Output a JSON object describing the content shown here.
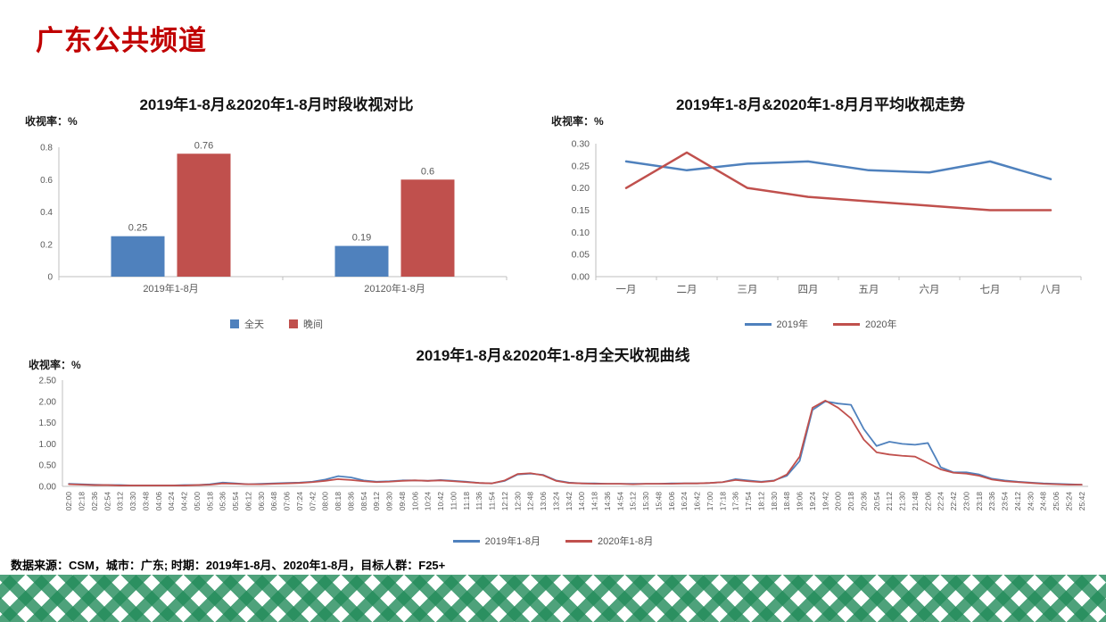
{
  "page": {
    "title": "广东公共频道",
    "footer": "数据来源：CSM，城市：广东; 时期：2019年1-8月、2020年1-8月，目标人群：F25+"
  },
  "colors": {
    "series_blue": "#4F81BD",
    "series_red": "#C0504D",
    "title_red": "#C00000",
    "band_green": "#228B5A"
  },
  "chart_data": [
    {
      "type": "bar",
      "title": "2019年1-8月&2020年1-8月时段收视对比",
      "ylabel": "收视率：%",
      "categories": [
        "2019年1-8月",
        "20120年1-8月"
      ],
      "series": [
        {
          "name": "全天",
          "color": "#4F81BD",
          "values": [
            0.25,
            0.19
          ],
          "labels": [
            "0.25",
            "0.19"
          ]
        },
        {
          "name": "晚间",
          "color": "#C0504D",
          "values": [
            0.76,
            0.6
          ],
          "labels": [
            "0.76",
            "0.6"
          ]
        }
      ],
      "ylim": [
        0,
        0.8
      ],
      "yticks": [
        "0",
        "0.2",
        "0.4",
        "0.6",
        "0.8"
      ],
      "grid": false,
      "legend_position": "bottom"
    },
    {
      "type": "line",
      "title": "2019年1-8月&2020年1-8月月平均收视走势",
      "ylabel": "收视率：%",
      "categories": [
        "一月",
        "二月",
        "三月",
        "四月",
        "五月",
        "六月",
        "七月",
        "八月"
      ],
      "series": [
        {
          "name": "2019年",
          "color": "#4F81BD",
          "values": [
            0.26,
            0.24,
            0.255,
            0.26,
            0.24,
            0.235,
            0.26,
            0.22
          ]
        },
        {
          "name": "2020年",
          "color": "#C0504D",
          "values": [
            0.2,
            0.28,
            0.2,
            0.18,
            0.17,
            0.16,
            0.15,
            0.15
          ]
        }
      ],
      "ylim": [
        0,
        0.3
      ],
      "yticks": [
        "0.00",
        "0.05",
        "0.10",
        "0.15",
        "0.20",
        "0.25",
        "0.30"
      ],
      "grid": false,
      "legend_position": "bottom"
    },
    {
      "type": "line",
      "title": "2019年1-8月&2020年1-8月全天收视曲线",
      "ylabel": "收视率：%",
      "categories": [
        "02:00",
        "02:18",
        "02:36",
        "02:54",
        "03:12",
        "03:30",
        "03:48",
        "04:06",
        "04:24",
        "04:42",
        "05:00",
        "05:18",
        "05:36",
        "05:54",
        "06:12",
        "06:30",
        "06:48",
        "07:06",
        "07:24",
        "07:42",
        "08:00",
        "08:18",
        "08:36",
        "08:54",
        "09:12",
        "09:30",
        "09:48",
        "10:06",
        "10:24",
        "10:42",
        "11:00",
        "11:18",
        "11:36",
        "11:54",
        "12:12",
        "12:30",
        "12:48",
        "13:06",
        "13:24",
        "13:42",
        "14:00",
        "14:18",
        "14:36",
        "14:54",
        "15:12",
        "15:30",
        "15:48",
        "16:06",
        "16:24",
        "16:42",
        "17:00",
        "17:18",
        "17:36",
        "17:54",
        "18:12",
        "18:30",
        "18:48",
        "19:06",
        "19:24",
        "19:42",
        "20:00",
        "20:18",
        "20:36",
        "20:54",
        "21:12",
        "21:30",
        "21:48",
        "22:06",
        "22:24",
        "22:42",
        "23:00",
        "23:18",
        "23:36",
        "23:54",
        "24:12",
        "24:30",
        "24:48",
        "25:06",
        "25:24",
        "25:42"
      ],
      "series": [
        {
          "name": "2019年1-8月",
          "color": "#4F81BD",
          "values": [
            0.06,
            0.05,
            0.04,
            0.03,
            0.03,
            0.02,
            0.02,
            0.02,
            0.02,
            0.03,
            0.03,
            0.05,
            0.09,
            0.07,
            0.05,
            0.06,
            0.07,
            0.08,
            0.09,
            0.11,
            0.16,
            0.24,
            0.21,
            0.14,
            0.11,
            0.12,
            0.14,
            0.14,
            0.13,
            0.15,
            0.13,
            0.11,
            0.08,
            0.07,
            0.13,
            0.28,
            0.3,
            0.27,
            0.14,
            0.09,
            0.07,
            0.07,
            0.06,
            0.06,
            0.06,
            0.06,
            0.06,
            0.07,
            0.07,
            0.07,
            0.08,
            0.1,
            0.17,
            0.14,
            0.11,
            0.14,
            0.25,
            0.6,
            1.8,
            2.0,
            1.95,
            1.92,
            1.35,
            0.95,
            1.05,
            1.0,
            0.98,
            1.02,
            0.45,
            0.33,
            0.33,
            0.28,
            0.18,
            0.14,
            0.11,
            0.09,
            0.07,
            0.06,
            0.05,
            0.04
          ]
        },
        {
          "name": "2020年1-8月",
          "color": "#C0504D",
          "values": [
            0.05,
            0.04,
            0.03,
            0.03,
            0.02,
            0.02,
            0.02,
            0.02,
            0.02,
            0.02,
            0.03,
            0.04,
            0.07,
            0.06,
            0.05,
            0.05,
            0.06,
            0.07,
            0.08,
            0.1,
            0.13,
            0.17,
            0.15,
            0.12,
            0.1,
            0.11,
            0.13,
            0.14,
            0.13,
            0.14,
            0.12,
            0.1,
            0.08,
            0.07,
            0.14,
            0.29,
            0.31,
            0.26,
            0.13,
            0.08,
            0.07,
            0.06,
            0.06,
            0.06,
            0.05,
            0.06,
            0.06,
            0.06,
            0.07,
            0.07,
            0.08,
            0.1,
            0.15,
            0.12,
            0.1,
            0.13,
            0.28,
            0.7,
            1.85,
            2.02,
            1.85,
            1.6,
            1.1,
            0.8,
            0.75,
            0.72,
            0.7,
            0.55,
            0.4,
            0.32,
            0.3,
            0.25,
            0.16,
            0.12,
            0.1,
            0.08,
            0.06,
            0.05,
            0.04,
            0.04
          ]
        }
      ],
      "ylim": [
        0,
        2.5
      ],
      "yticks": [
        "0.00",
        "0.50",
        "1.00",
        "1.50",
        "2.00",
        "2.50"
      ],
      "grid": false,
      "legend_position": "bottom"
    }
  ]
}
